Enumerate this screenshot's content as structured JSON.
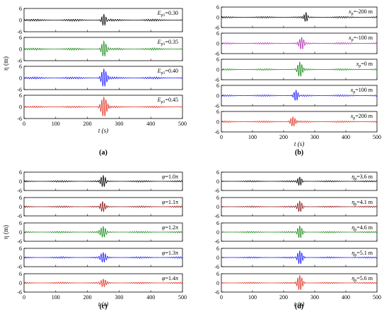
{
  "chart_data": [
    {
      "type": "line",
      "caption": "(a)",
      "xlabel": "t (s)",
      "ylabel": "η (m)",
      "xlim": [
        0,
        500
      ],
      "ylim": [
        -6,
        6
      ],
      "xticks": [
        0,
        100,
        200,
        300,
        400,
        500
      ],
      "yticks": [
        -6,
        0,
        6
      ],
      "grid": false,
      "series": [
        {
          "label_main": "E",
          "label_sub": "p1",
          "label_rest": "=0.30",
          "color": "#000000",
          "amplitude": 3.0,
          "center": 252,
          "width": 8,
          "noise": 0.6
        },
        {
          "label_main": "E",
          "label_sub": "p1",
          "label_rest": "=0.35",
          "color": "#1a8a1a",
          "amplitude": 4.0,
          "center": 252,
          "width": 9,
          "noise": 0.6
        },
        {
          "label_main": "E",
          "label_sub": "p1",
          "label_rest": "=0.40",
          "color": "#1a1aff",
          "amplitude": 4.8,
          "center": 252,
          "width": 10,
          "noise": 0.6
        },
        {
          "label_main": "E",
          "label_sub": "p1",
          "label_rest": "=0.45",
          "color": "#e03020",
          "amplitude": 5.5,
          "center": 252,
          "width": 11,
          "noise": 0.5
        }
      ]
    },
    {
      "type": "line",
      "caption": "(b)",
      "xlabel": "t (s)",
      "ylabel": "",
      "xlim": [
        0,
        500
      ],
      "ylim": [
        -6,
        6
      ],
      "xticks": [
        0,
        100,
        200,
        300,
        400,
        500
      ],
      "yticks": [
        -6,
        0,
        6
      ],
      "grid": false,
      "series": [
        {
          "label_main": "x",
          "label_sub": "p",
          "label_rest": "=-200 m",
          "color": "#000000",
          "amplitude": 3.0,
          "center": 272,
          "width": 7,
          "noise": 0.5
        },
        {
          "label_main": "x",
          "label_sub": "p",
          "label_rest": "=-100 m",
          "color": "#b030b0",
          "amplitude": 3.5,
          "center": 258,
          "width": 9,
          "noise": 0.5
        },
        {
          "label_main": "x",
          "label_sub": "p",
          "label_rest": "=0 m",
          "color": "#1a8a1a",
          "amplitude": 4.5,
          "center": 252,
          "width": 9,
          "noise": 0.5
        },
        {
          "label_main": "x",
          "label_sub": "p",
          "label_rest": "=100 m",
          "color": "#1a1aff",
          "amplitude": 3.5,
          "center": 240,
          "width": 9,
          "noise": 0.5
        },
        {
          "label_main": "x",
          "label_sub": "p",
          "label_rest": "=200 m",
          "color": "#e03020",
          "amplitude": 3.0,
          "center": 230,
          "width": 10,
          "noise": 0.5
        }
      ]
    },
    {
      "type": "line",
      "caption": "(c)",
      "xlabel": "t (s)",
      "ylabel": "η (m)",
      "xlim": [
        0,
        500
      ],
      "ylim": [
        -6,
        6
      ],
      "xticks": [
        0,
        100,
        200,
        300,
        400,
        500
      ],
      "yticks": [
        -6,
        0,
        6
      ],
      "grid": false,
      "series": [
        {
          "label_main": "φ",
          "label_sub": "",
          "label_rest": "=1.0π",
          "color": "#000000",
          "amplitude": 4.5,
          "center": 250,
          "width": 10,
          "noise": 0.6
        },
        {
          "label_main": "φ",
          "label_sub": "",
          "label_rest": "=1.1π",
          "color": "#8b1a1a",
          "amplitude": 4.0,
          "center": 248,
          "width": 10,
          "noise": 0.6
        },
        {
          "label_main": "φ",
          "label_sub": "",
          "label_rest": "=1.2π",
          "color": "#1a8a1a",
          "amplitude": 3.5,
          "center": 250,
          "width": 10,
          "noise": 0.6
        },
        {
          "label_main": "φ",
          "label_sub": "",
          "label_rest": "=1.3π",
          "color": "#1a1aff",
          "amplitude": 3.0,
          "center": 250,
          "width": 10,
          "noise": 0.6
        },
        {
          "label_main": "φ",
          "label_sub": "",
          "label_rest": "=1.4π",
          "color": "#e03020",
          "amplitude": 2.5,
          "center": 250,
          "width": 10,
          "noise": 0.6
        }
      ]
    },
    {
      "type": "line",
      "caption": "(d)",
      "xlabel": "t (s)",
      "ylabel": "",
      "xlim": [
        0,
        500
      ],
      "ylim": [
        -6,
        6
      ],
      "xticks": [
        0,
        100,
        200,
        300,
        400,
        500
      ],
      "yticks": [
        -6,
        0,
        6
      ],
      "grid": false,
      "series": [
        {
          "label_main": "η",
          "label_sub": "p",
          "label_rest": "=3.6 m",
          "color": "#000000",
          "amplitude": 2.8,
          "center": 252,
          "width": 8,
          "noise": 0.5
        },
        {
          "label_main": "η",
          "label_sub": "p",
          "label_rest": "=4.1 m",
          "color": "#8b1a1a",
          "amplitude": 3.5,
          "center": 252,
          "width": 9,
          "noise": 0.5
        },
        {
          "label_main": "η",
          "label_sub": "p",
          "label_rest": "=4.6 m",
          "color": "#1a8a1a",
          "amplitude": 4.2,
          "center": 252,
          "width": 9,
          "noise": 0.5
        },
        {
          "label_main": "η",
          "label_sub": "p",
          "label_rest": "=5.1 m",
          "color": "#1a1aff",
          "amplitude": 4.8,
          "center": 252,
          "width": 10,
          "noise": 0.5
        },
        {
          "label_main": "η",
          "label_sub": "p",
          "label_rest": "=5.6 m",
          "color": "#e03020",
          "amplitude": 5.5,
          "center": 252,
          "width": 10,
          "noise": 0.5
        }
      ]
    }
  ]
}
